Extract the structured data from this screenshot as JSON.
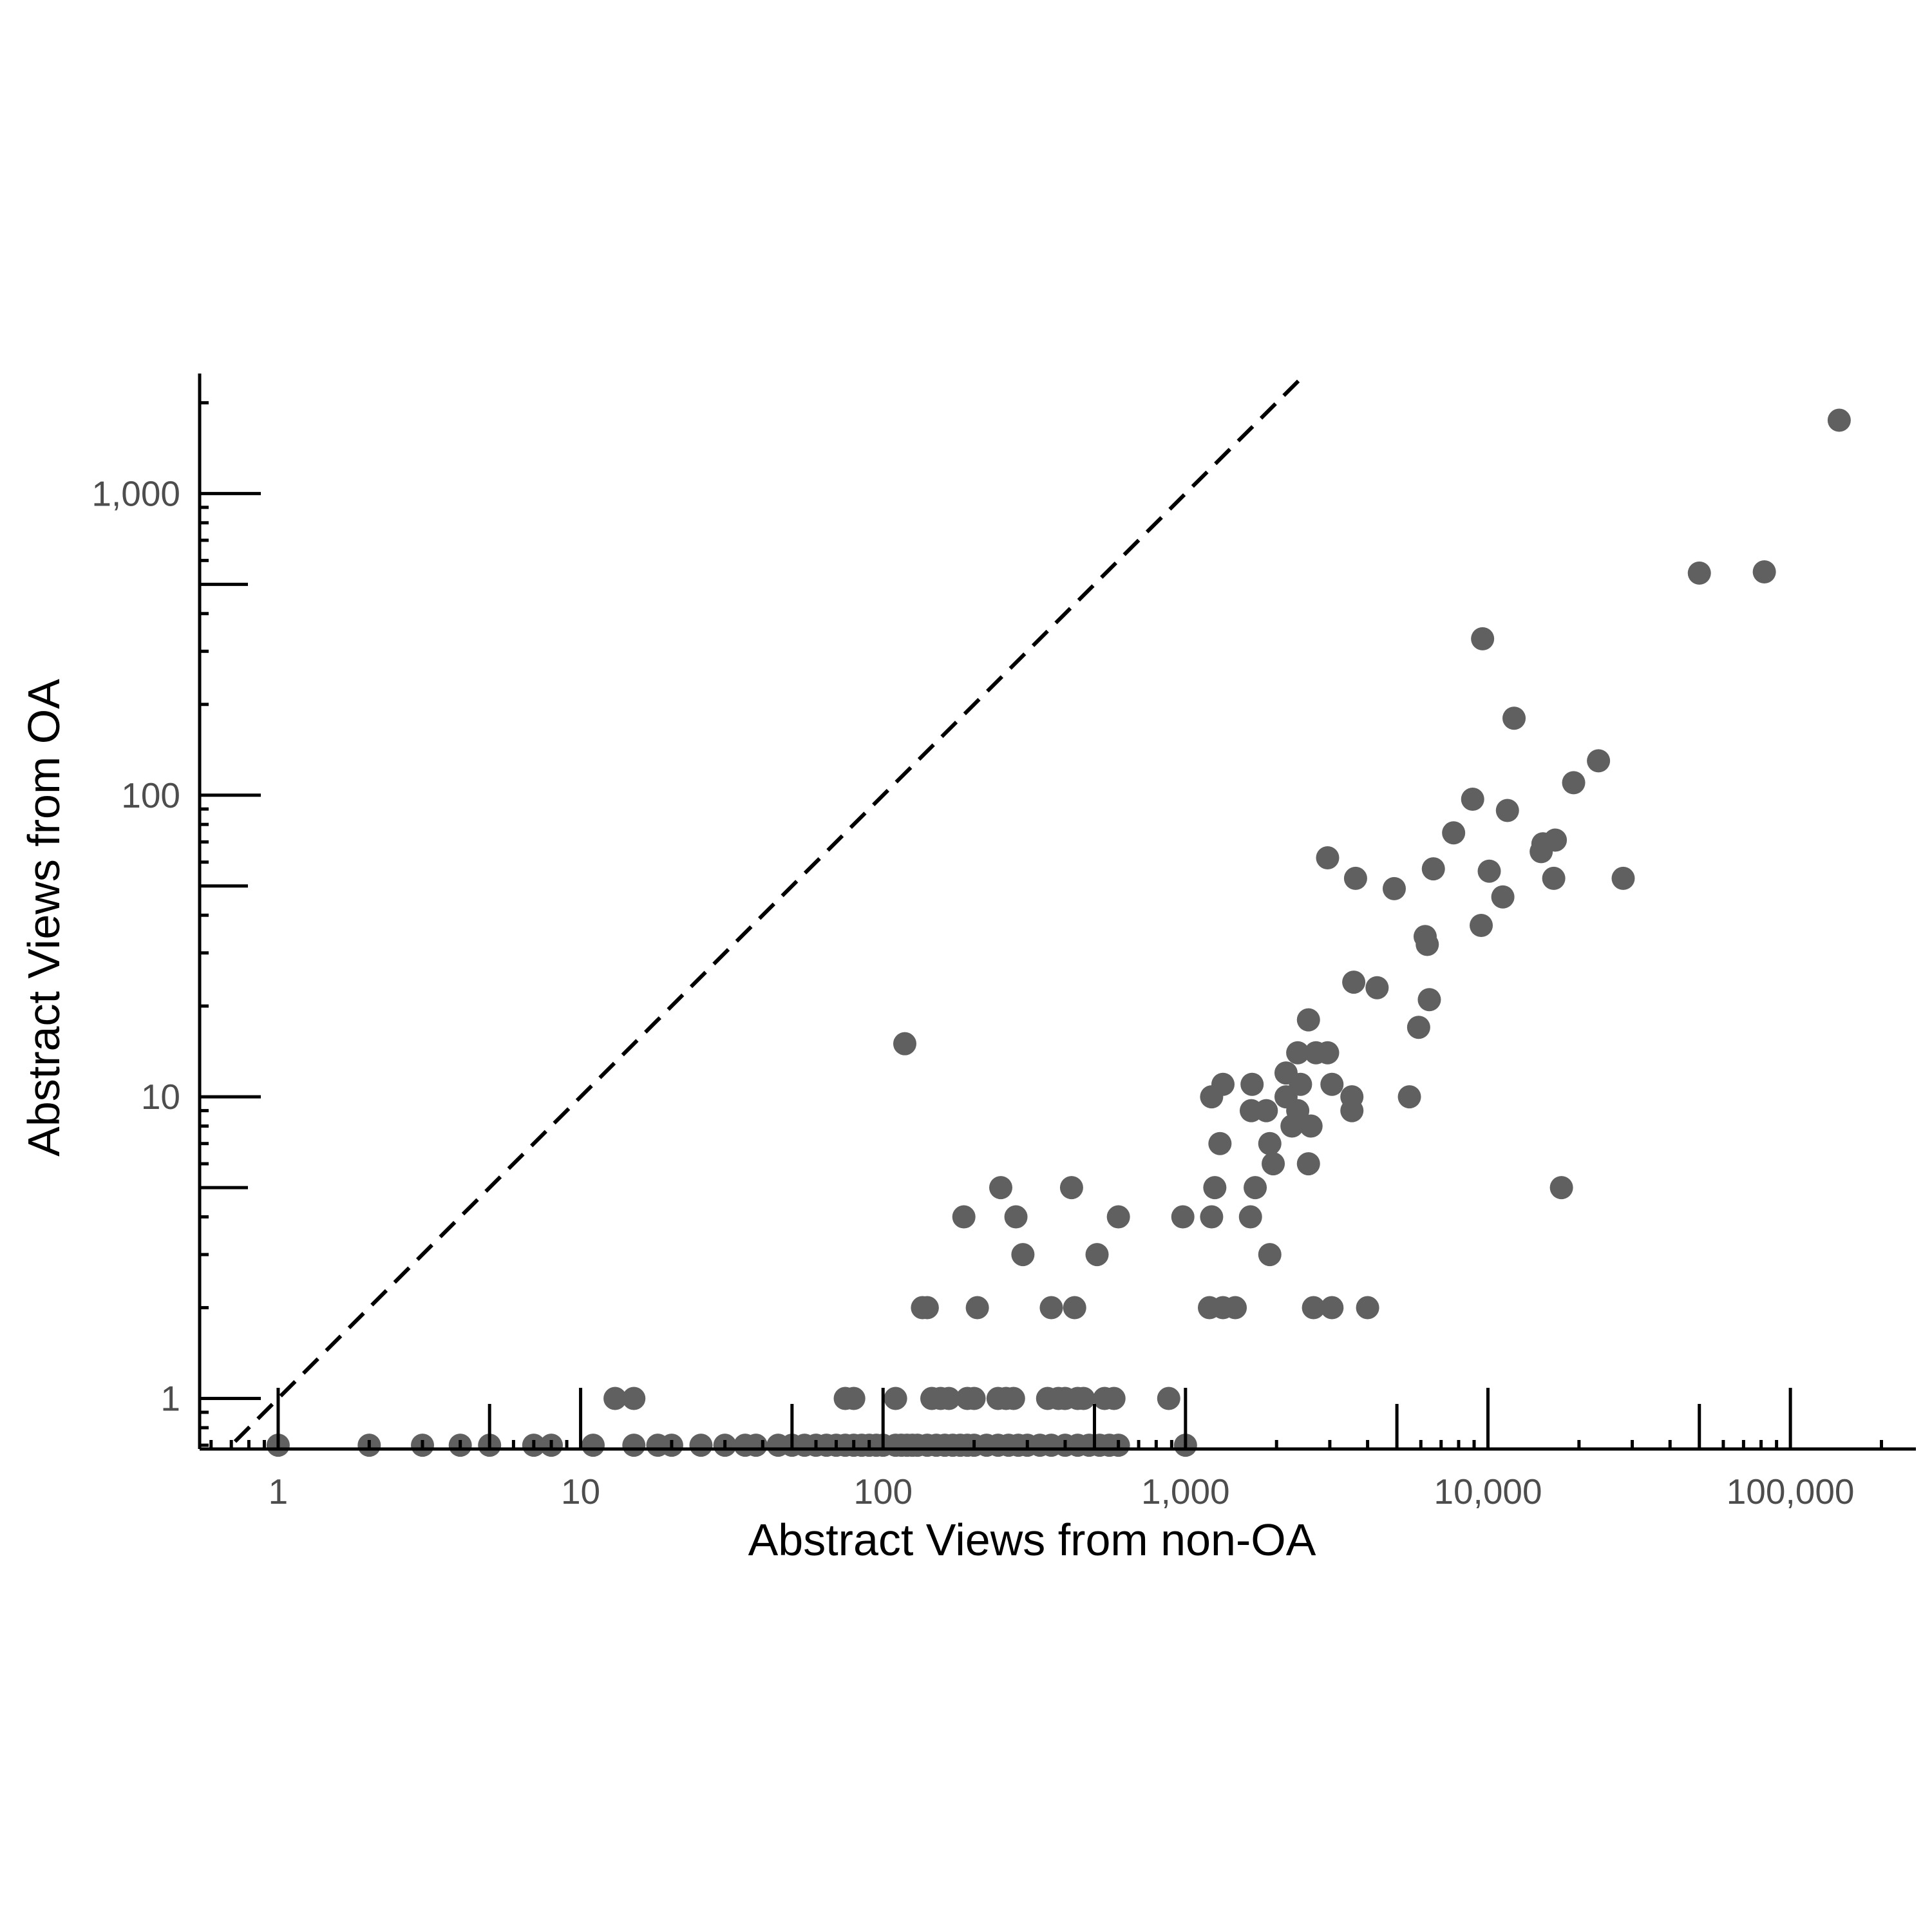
{
  "chart_data": {
    "type": "scatter",
    "title": "",
    "xlabel": "Abstract Views from non-OA",
    "ylabel": "Abstract Views from OA",
    "x_scale": "log10",
    "y_scale": "log10",
    "xlim": [
      0.55,
      260000
    ],
    "ylim": [
      0.68,
      2500
    ],
    "x_ticks": [
      {
        "value": 1,
        "label": "1"
      },
      {
        "value": 10,
        "label": "10"
      },
      {
        "value": 100,
        "label": "100"
      },
      {
        "value": 1000,
        "label": "1,000"
      },
      {
        "value": 10000,
        "label": "10,000"
      },
      {
        "value": 100000,
        "label": "100,000"
      }
    ],
    "y_ticks": [
      {
        "value": 1,
        "label": "1"
      },
      {
        "value": 10,
        "label": "10"
      },
      {
        "value": 100,
        "label": "100"
      },
      {
        "value": 1000,
        "label": "1,000"
      }
    ],
    "reference_line": {
      "type": "identity",
      "description": "y = x",
      "style": "dashed"
    },
    "grid": false,
    "legend": "none",
    "point_color": "#606060",
    "axis_color": "#000000",
    "points_on_zero_floor": {
      "y": 0.7,
      "x": [
        1,
        2,
        3,
        4,
        5,
        7,
        8,
        11,
        15,
        18,
        20,
        25,
        30,
        35,
        38,
        45,
        50,
        55,
        60,
        65,
        70,
        75,
        80,
        85,
        90,
        95,
        100,
        110,
        115,
        120,
        125,
        130,
        140,
        150,
        160,
        170,
        180,
        190,
        200,
        220,
        240,
        260,
        280,
        300,
        330,
        360,
        400,
        440,
        480,
        520,
        560,
        600,
        1000
      ]
    },
    "points": [
      {
        "x": 13,
        "y": 1
      },
      {
        "x": 15,
        "y": 1
      },
      {
        "x": 75,
        "y": 1
      },
      {
        "x": 80,
        "y": 1
      },
      {
        "x": 110,
        "y": 1
      },
      {
        "x": 145,
        "y": 1
      },
      {
        "x": 155,
        "y": 1
      },
      {
        "x": 165,
        "y": 1
      },
      {
        "x": 190,
        "y": 1
      },
      {
        "x": 200,
        "y": 1
      },
      {
        "x": 240,
        "y": 1
      },
      {
        "x": 255,
        "y": 1
      },
      {
        "x": 270,
        "y": 1
      },
      {
        "x": 350,
        "y": 1
      },
      {
        "x": 380,
        "y": 1
      },
      {
        "x": 400,
        "y": 1
      },
      {
        "x": 440,
        "y": 1
      },
      {
        "x": 460,
        "y": 1
      },
      {
        "x": 540,
        "y": 1
      },
      {
        "x": 580,
        "y": 1
      },
      {
        "x": 880,
        "y": 1
      },
      {
        "x": 135,
        "y": 2
      },
      {
        "x": 140,
        "y": 2
      },
      {
        "x": 205,
        "y": 2
      },
      {
        "x": 360,
        "y": 2
      },
      {
        "x": 430,
        "y": 2
      },
      {
        "x": 1200,
        "y": 2
      },
      {
        "x": 1330,
        "y": 2
      },
      {
        "x": 1460,
        "y": 2
      },
      {
        "x": 2650,
        "y": 2
      },
      {
        "x": 3050,
        "y": 2
      },
      {
        "x": 4000,
        "y": 2
      },
      {
        "x": 290,
        "y": 3
      },
      {
        "x": 510,
        "y": 3
      },
      {
        "x": 1900,
        "y": 3
      },
      {
        "x": 185,
        "y": 4
      },
      {
        "x": 275,
        "y": 4
      },
      {
        "x": 600,
        "y": 4
      },
      {
        "x": 980,
        "y": 4
      },
      {
        "x": 1220,
        "y": 4
      },
      {
        "x": 1640,
        "y": 4
      },
      {
        "x": 245,
        "y": 5
      },
      {
        "x": 420,
        "y": 5
      },
      {
        "x": 1250,
        "y": 5
      },
      {
        "x": 1700,
        "y": 5
      },
      {
        "x": 17500,
        "y": 5
      },
      {
        "x": 1950,
        "y": 6
      },
      {
        "x": 2550,
        "y": 6
      },
      {
        "x": 1300,
        "y": 7
      },
      {
        "x": 1900,
        "y": 7
      },
      {
        "x": 2250,
        "y": 8
      },
      {
        "x": 2600,
        "y": 8
      },
      {
        "x": 1650,
        "y": 9
      },
      {
        "x": 1850,
        "y": 9
      },
      {
        "x": 2350,
        "y": 9
      },
      {
        "x": 3550,
        "y": 9
      },
      {
        "x": 1220,
        "y": 10
      },
      {
        "x": 2150,
        "y": 10
      },
      {
        "x": 3550,
        "y": 10
      },
      {
        "x": 5500,
        "y": 10
      },
      {
        "x": 1330,
        "y": 11
      },
      {
        "x": 1660,
        "y": 11
      },
      {
        "x": 2400,
        "y": 11
      },
      {
        "x": 3050,
        "y": 11
      },
      {
        "x": 2150,
        "y": 12
      },
      {
        "x": 2350,
        "y": 14
      },
      {
        "x": 2700,
        "y": 14
      },
      {
        "x": 2950,
        "y": 14
      },
      {
        "x": 118,
        "y": 15
      },
      {
        "x": 5900,
        "y": 17
      },
      {
        "x": 2550,
        "y": 18
      },
      {
        "x": 6400,
        "y": 21
      },
      {
        "x": 4300,
        "y": 23
      },
      {
        "x": 3600,
        "y": 24
      },
      {
        "x": 6300,
        "y": 32
      },
      {
        "x": 6200,
        "y": 34
      },
      {
        "x": 9500,
        "y": 37
      },
      {
        "x": 11200,
        "y": 46
      },
      {
        "x": 4900,
        "y": 49
      },
      {
        "x": 3650,
        "y": 53
      },
      {
        "x": 16500,
        "y": 53
      },
      {
        "x": 28000,
        "y": 53
      },
      {
        "x": 10100,
        "y": 56
      },
      {
        "x": 6600,
        "y": 57
      },
      {
        "x": 2950,
        "y": 62
      },
      {
        "x": 15000,
        "y": 65
      },
      {
        "x": 15200,
        "y": 69
      },
      {
        "x": 16700,
        "y": 71
      },
      {
        "x": 7700,
        "y": 75
      },
      {
        "x": 11600,
        "y": 89
      },
      {
        "x": 8900,
        "y": 97
      },
      {
        "x": 19200,
        "y": 110
      },
      {
        "x": 23200,
        "y": 130
      },
      {
        "x": 12200,
        "y": 180
      },
      {
        "x": 9600,
        "y": 330
      },
      {
        "x": 50000,
        "y": 545
      },
      {
        "x": 82000,
        "y": 550
      },
      {
        "x": 145000,
        "y": 1750
      }
    ]
  }
}
